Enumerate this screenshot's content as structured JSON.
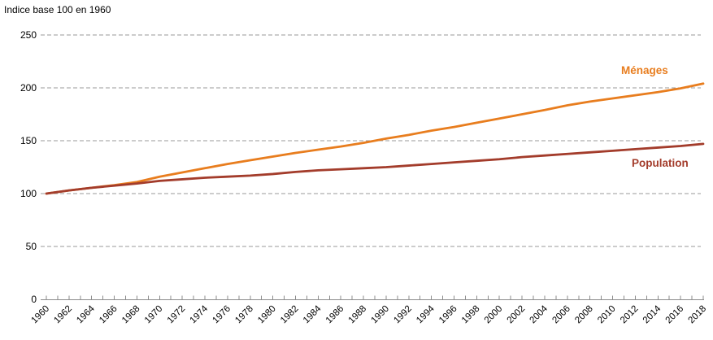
{
  "title": "Indice base 100 en 1960",
  "chart_data": {
    "type": "line",
    "title": "Indice base 100 en 1960",
    "x_start": 1960,
    "x_end": 2018,
    "x_data_step": 2,
    "x_label_step": 2,
    "x_tick_step": 1,
    "categories": [
      1960,
      1962,
      1964,
      1966,
      1968,
      1970,
      1972,
      1974,
      1976,
      1978,
      1980,
      1982,
      1984,
      1986,
      1988,
      1990,
      1992,
      1994,
      1996,
      1998,
      2000,
      2002,
      2004,
      2006,
      2008,
      2010,
      2012,
      2014,
      2016,
      2018
    ],
    "series": [
      {
        "name": "Ménages",
        "color": "#e87d1e",
        "values": [
          100,
          103,
          105.5,
          108,
          111,
          116,
          120,
          124,
          128,
          131.5,
          135,
          138.5,
          141.5,
          144.5,
          148,
          152,
          155.5,
          159.5,
          163,
          167,
          171,
          175,
          179,
          183.5,
          187,
          190,
          193,
          196,
          199.5,
          204
        ]
      },
      {
        "name": "Population",
        "color": "#a33c2b",
        "values": [
          100,
          103,
          105.5,
          107.5,
          109.5,
          112,
          113.5,
          115,
          116,
          117,
          118.5,
          120.5,
          122,
          123,
          124,
          125,
          126.5,
          128,
          129.5,
          131,
          132.5,
          134.5,
          136,
          137.5,
          139,
          140.5,
          142,
          143.5,
          145,
          147
        ]
      }
    ],
    "ylim": [
      0,
      250
    ],
    "yticks": [
      0,
      50,
      100,
      150,
      200,
      250
    ],
    "grid": "horizontal-dashed",
    "legend_position": "inline-end-of-line-labels",
    "xlabel": "",
    "ylabel": ""
  }
}
